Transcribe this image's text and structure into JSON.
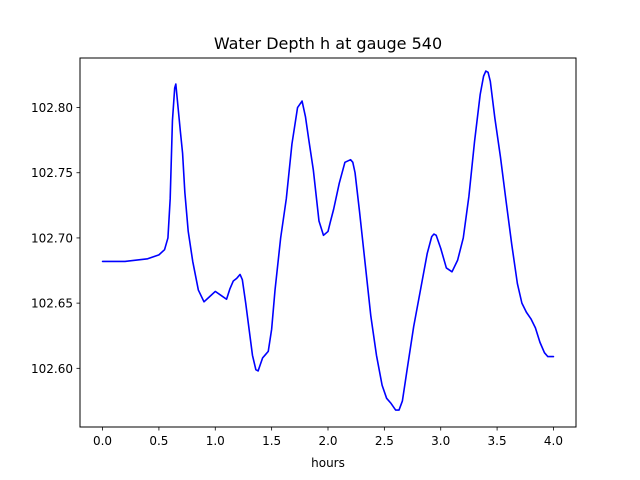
{
  "chart_data": {
    "type": "line",
    "title": "Water Depth h at gauge 540",
    "xlabel": "hours",
    "ylabel": "",
    "xlim": [
      -0.2,
      4.2
    ],
    "ylim": [
      102.555,
      102.838
    ],
    "x_ticks": [
      0.0,
      0.5,
      1.0,
      1.5,
      2.0,
      2.5,
      3.0,
      3.5,
      4.0
    ],
    "x_tick_labels": [
      "0.0",
      "0.5",
      "1.0",
      "1.5",
      "2.0",
      "2.5",
      "3.0",
      "3.5",
      "4.0"
    ],
    "y_ticks": [
      102.6,
      102.65,
      102.7,
      102.75,
      102.8
    ],
    "y_tick_labels": [
      "102.60",
      "102.65",
      "102.70",
      "102.75",
      "102.80"
    ],
    "grid": false,
    "series": [
      {
        "color": "#0000ff",
        "x": [
          0.0,
          0.2,
          0.4,
          0.5,
          0.55,
          0.58,
          0.6,
          0.62,
          0.64,
          0.65,
          0.67,
          0.69,
          0.71,
          0.73,
          0.76,
          0.8,
          0.85,
          0.9,
          0.95,
          1.0,
          1.05,
          1.1,
          1.13,
          1.16,
          1.19,
          1.22,
          1.24,
          1.27,
          1.3,
          1.33,
          1.36,
          1.38,
          1.4,
          1.42,
          1.44,
          1.47,
          1.5,
          1.53,
          1.58,
          1.63,
          1.68,
          1.73,
          1.77,
          1.8,
          1.83,
          1.87,
          1.92,
          1.96,
          2.0,
          2.02,
          2.05,
          2.1,
          2.15,
          2.2,
          2.22,
          2.24,
          2.28,
          2.33,
          2.38,
          2.43,
          2.48,
          2.52,
          2.56,
          2.6,
          2.63,
          2.66,
          2.7,
          2.76,
          2.82,
          2.88,
          2.92,
          2.94,
          2.96,
          3.0,
          3.05,
          3.1,
          3.15,
          3.2,
          3.25,
          3.3,
          3.35,
          3.38,
          3.4,
          3.42,
          3.44,
          3.48,
          3.53,
          3.58,
          3.63,
          3.68,
          3.72,
          3.76,
          3.8,
          3.84,
          3.88,
          3.92,
          3.95,
          4.0
        ],
        "y": [
          102.682,
          102.682,
          102.684,
          102.687,
          102.691,
          102.7,
          102.73,
          102.79,
          102.815,
          102.818,
          102.8,
          102.782,
          102.765,
          102.735,
          102.705,
          102.682,
          102.66,
          102.651,
          102.655,
          102.659,
          102.656,
          102.653,
          102.661,
          102.667,
          102.669,
          102.672,
          102.668,
          102.65,
          102.63,
          102.61,
          102.599,
          102.598,
          102.603,
          102.608,
          102.61,
          102.613,
          102.63,
          102.66,
          102.7,
          102.73,
          102.772,
          102.8,
          102.805,
          102.793,
          102.775,
          102.752,
          102.713,
          102.702,
          102.705,
          102.712,
          102.722,
          102.742,
          102.758,
          102.76,
          102.758,
          102.75,
          102.72,
          102.68,
          102.64,
          102.61,
          102.587,
          102.577,
          102.573,
          102.568,
          102.568,
          102.575,
          102.598,
          102.632,
          102.66,
          102.688,
          102.701,
          102.703,
          102.702,
          102.692,
          102.677,
          102.674,
          102.683,
          102.7,
          102.732,
          102.774,
          102.81,
          102.824,
          102.828,
          102.827,
          102.82,
          102.792,
          102.762,
          102.728,
          102.695,
          102.665,
          102.65,
          102.643,
          102.638,
          102.631,
          102.62,
          102.612,
          102.609,
          102.609
        ]
      }
    ]
  }
}
